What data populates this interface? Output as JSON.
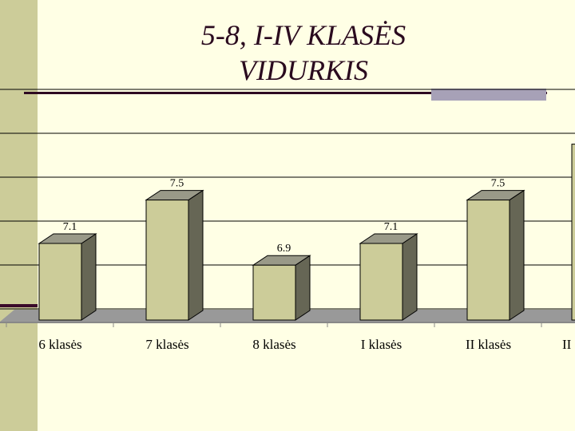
{
  "title": "5-8, I-IV KLASĖS VIDURKIS",
  "title_lines": [
    "5-8, I-IV KLASĖS",
    "VIDURKIS"
  ],
  "colors": {
    "background": "#ffffe5",
    "band": "#cccc99",
    "bar_front": "#cccc99",
    "bar_side": "#666655",
    "bar_top": "#999988",
    "floor": "#999999",
    "grid": "#000000",
    "title_text": "#2a0a1e",
    "rule": "#2e0a22",
    "rule_accent": "#a7a1b7"
  },
  "chart_data": {
    "type": "bar",
    "categories": [
      "6 klasės",
      "7 klasės",
      "8 klasės",
      "I klasės",
      "II klasės",
      "II"
    ],
    "values": [
      7.1,
      7.5,
      6.9,
      7.1,
      7.5,
      null
    ],
    "data_labels": [
      "7.1",
      "7.5",
      "6.9",
      "7.1",
      "7.5",
      ""
    ],
    "title": "5-8, I-IV KLASĖS VIDURKIS",
    "xlabel": "",
    "ylabel": "",
    "grid": true,
    "legend": "none"
  }
}
